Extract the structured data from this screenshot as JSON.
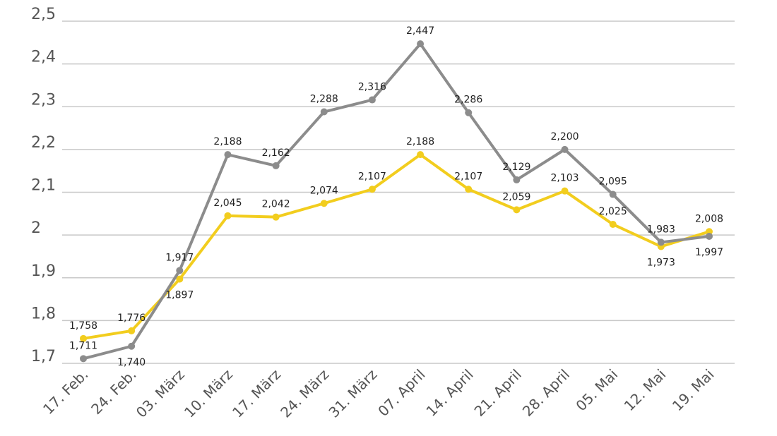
{
  "chart_data": {
    "type": "line",
    "categories": [
      "17. Feb.",
      "24. Feb.",
      "03. März",
      "10. März",
      "17. März",
      "24. März",
      "31. März",
      "07. April",
      "14. April",
      "21. April",
      "28. April",
      "05. Mai",
      "12. Mai",
      "19. Mai"
    ],
    "series": [
      {
        "color": "#f2cd1e",
        "values": [
          1.758,
          1.776,
          1.897,
          2.045,
          2.042,
          2.074,
          2.107,
          2.188,
          2.107,
          2.059,
          2.103,
          2.025,
          1.973,
          2.008
        ],
        "labels": [
          "1,758",
          "1,776",
          "1,897",
          "2,045",
          "2,042",
          "2,074",
          "2,107",
          "2,188",
          "2,107",
          "2,059",
          "2,103",
          "2,025",
          "1,973",
          "2,008"
        ]
      },
      {
        "color": "#8c8c8c",
        "values": [
          1.711,
          1.74,
          1.917,
          2.188,
          2.162,
          2.288,
          2.316,
          2.447,
          2.286,
          2.129,
          2.2,
          2.095,
          1.983,
          1.997
        ],
        "labels": [
          "1,711",
          "1,740",
          "1,917",
          "2,188",
          "2,162",
          "2,288",
          "2,316",
          "2,447",
          "2,286",
          "2,129",
          "2,200",
          "2,095",
          "1,983",
          "1,997"
        ]
      }
    ],
    "yticks": [
      1.7,
      1.8,
      1.9,
      2.0,
      2.1,
      2.2,
      2.3,
      2.4,
      2.5
    ],
    "ytick_labels": [
      "1,7",
      "1,8",
      "1,9",
      "2",
      "2,1",
      "2,2",
      "2,3",
      "2,4",
      "2,5"
    ],
    "ylim": [
      1.7,
      2.5
    ],
    "grid": true,
    "legend": "none",
    "title": "",
    "xlabel": "",
    "ylabel": ""
  }
}
